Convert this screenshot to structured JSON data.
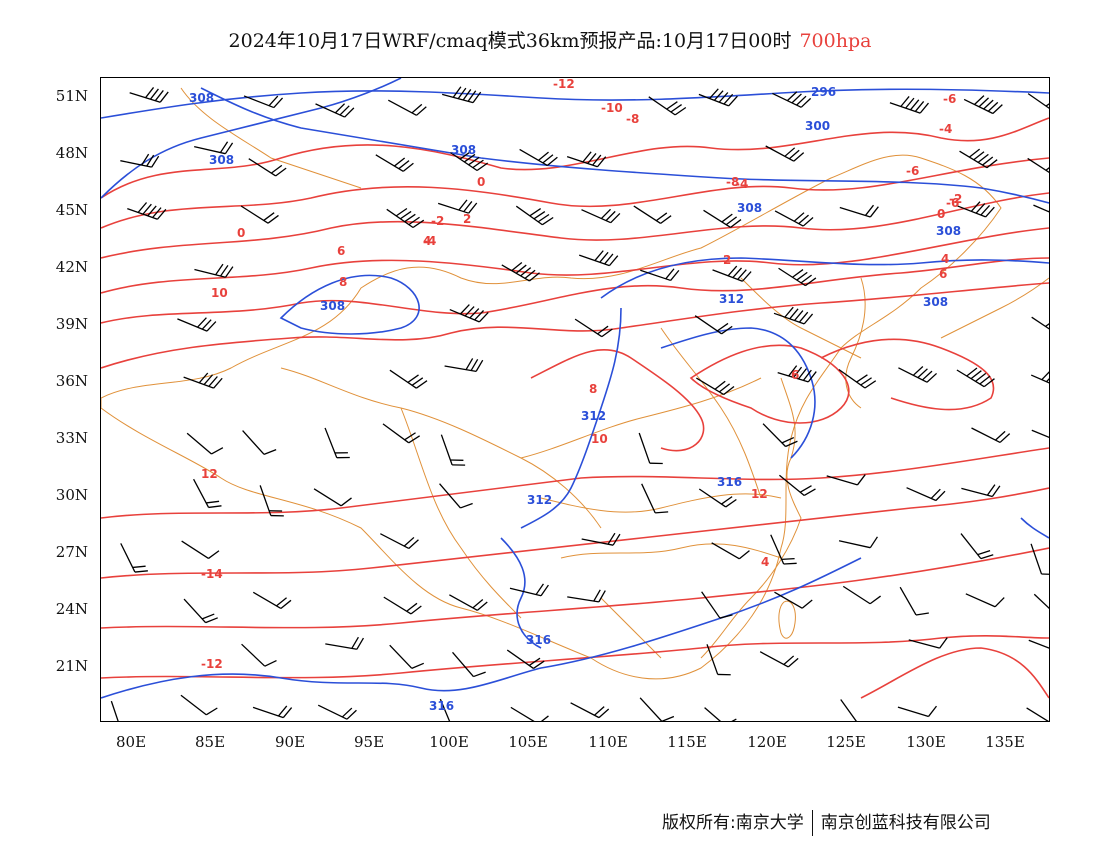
{
  "title": {
    "main": "2024年10月17日WRF/cmaq模式36km预报产品:10月17日00时",
    "level": "700hpa",
    "level_color": "#e8413c"
  },
  "axes": {
    "lat_labels": [
      "51N",
      "48N",
      "45N",
      "42N",
      "39N",
      "36N",
      "33N",
      "30N",
      "27N",
      "24N",
      "21N"
    ],
    "lon_labels": [
      "80E",
      "85E",
      "90E",
      "95E",
      "100E",
      "105E",
      "110E",
      "115E",
      "120E",
      "125E",
      "130E",
      "135E"
    ]
  },
  "legend_colors": {
    "temperature_contour": "#e8413c",
    "height_contour": "#2b4fd8",
    "boundaries": "#e0913a",
    "wind_barbs": "#000000"
  },
  "contour_labels": {
    "temperature": [
      {
        "text": "-12"
      },
      {
        "text": "-10"
      },
      {
        "text": "-8"
      },
      {
        "text": "-6"
      },
      {
        "text": "-4"
      },
      {
        "text": "-2"
      },
      {
        "text": "0"
      },
      {
        "text": "2"
      },
      {
        "text": "4"
      },
      {
        "text": "6"
      },
      {
        "text": "8"
      },
      {
        "text": "10"
      },
      {
        "text": "12"
      },
      {
        "text": "-14"
      },
      {
        "text": "-12"
      },
      {
        "text": "-6"
      },
      {
        "text": "-4"
      },
      {
        "text": "-2"
      },
      {
        "text": "0"
      },
      {
        "text": "4"
      },
      {
        "text": "6"
      },
      {
        "text": "8"
      },
      {
        "text": "10"
      },
      {
        "text": "12"
      },
      {
        "text": "4"
      },
      {
        "text": "6"
      },
      {
        "text": "-8"
      },
      {
        "text": "-6"
      },
      {
        "text": "-4"
      },
      {
        "text": "0"
      },
      {
        "text": "2"
      }
    ],
    "height": [
      {
        "text": "308"
      },
      {
        "text": "308"
      },
      {
        "text": "308"
      },
      {
        "text": "308"
      },
      {
        "text": "312"
      },
      {
        "text": "312"
      },
      {
        "text": "316"
      },
      {
        "text": "316"
      },
      {
        "text": "316"
      },
      {
        "text": "300"
      },
      {
        "text": "296"
      },
      {
        "text": "308"
      },
      {
        "text": "312"
      },
      {
        "text": "308"
      },
      {
        "text": "308"
      }
    ]
  },
  "footer": {
    "left": "版权所有:南京大学",
    "right": "南京创蓝科技有限公司"
  }
}
